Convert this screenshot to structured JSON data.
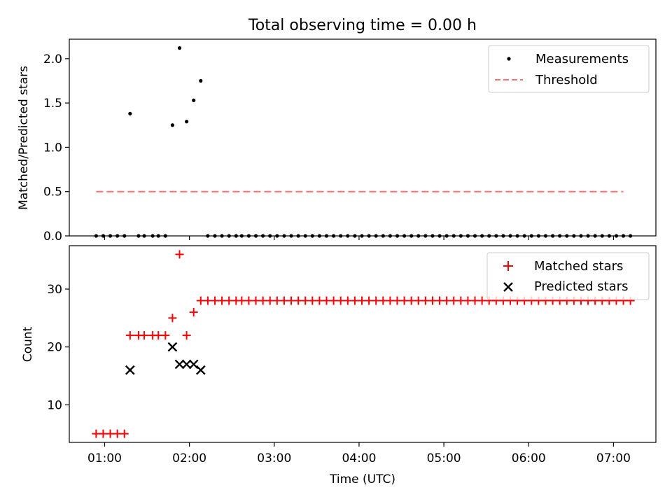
{
  "chart_data": [
    {
      "type": "scatter",
      "title": "Total observing time = 0.00 h",
      "xlabel": "",
      "ylabel": "Matched/Predicted stars",
      "xlim": [
        "00:35",
        "07:30"
      ],
      "ylim": [
        0,
        2.22
      ],
      "yticks": [
        0.0,
        0.5,
        1.0,
        1.5,
        2.0
      ],
      "ytick_labels": [
        "0.0",
        "0.5",
        "1.0",
        "1.5",
        "2.0"
      ],
      "grid": false,
      "legend": "top-right",
      "series": [
        {
          "name": "Measurements",
          "marker": "dot",
          "color": "#000000",
          "x": [
            "00:54",
            "00:59",
            "01:04",
            "01:09",
            "01:14",
            "01:18",
            "01:24",
            "01:28",
            "01:34",
            "01:38",
            "01:43",
            "01:48",
            "01:53",
            "01:58",
            "02:03",
            "02:08",
            "02:13",
            "02:18",
            "02:23",
            "02:28",
            "02:33",
            "02:37",
            "02:42",
            "02:47",
            "02:52",
            "02:57",
            "03:02",
            "03:07",
            "03:12",
            "03:17",
            "03:22",
            "03:27",
            "03:32",
            "03:37",
            "03:42",
            "03:47",
            "03:52",
            "03:57",
            "04:02",
            "04:07",
            "04:12",
            "04:17",
            "04:22",
            "04:27",
            "04:32",
            "04:37",
            "04:42",
            "04:47",
            "04:52",
            "04:57",
            "05:02",
            "05:07",
            "05:12",
            "05:17",
            "05:22",
            "05:27",
            "05:32",
            "05:37",
            "05:42",
            "05:47",
            "05:52",
            "05:57",
            "06:02",
            "06:07",
            "06:12",
            "06:17",
            "06:22",
            "06:27",
            "06:32",
            "06:37",
            "06:42",
            "06:47",
            "06:52",
            "06:57",
            "07:02",
            "07:07",
            "07:12"
          ],
          "y": [
            0,
            0,
            0,
            0,
            0,
            1.38,
            0,
            0,
            0,
            0,
            0,
            1.25,
            2.12,
            1.29,
            1.53,
            1.75,
            0,
            0,
            0,
            0,
            0,
            0,
            0,
            0,
            0,
            0,
            0,
            0,
            0,
            0,
            0,
            0,
            0,
            0,
            0,
            0,
            0,
            0,
            0,
            0,
            0,
            0,
            0,
            0,
            0,
            0,
            0,
            0,
            0,
            0,
            0,
            0,
            0,
            0,
            0,
            0,
            0,
            0,
            0,
            0,
            0,
            0,
            0,
            0,
            0,
            0,
            0,
            0,
            0,
            0,
            0,
            0,
            0,
            0,
            0,
            0,
            0
          ]
        },
        {
          "name": "Threshold",
          "style": "dashed",
          "color": "#ff7070",
          "x": [
            "00:54",
            "07:07"
          ],
          "y": [
            0.5,
            0.5
          ]
        }
      ]
    },
    {
      "type": "scatter",
      "title": "",
      "xlabel": "Time (UTC)",
      "ylabel": "Count",
      "xlim": [
        "00:35",
        "07:30"
      ],
      "ylim": [
        3.5,
        37.5
      ],
      "yticks": [
        10,
        20,
        30
      ],
      "ytick_labels": [
        "10",
        "20",
        "30"
      ],
      "xticks": [
        "01:00",
        "02:00",
        "03:00",
        "04:00",
        "05:00",
        "06:00",
        "07:00"
      ],
      "xtick_labels": [
        "01:00",
        "02:00",
        "03:00",
        "04:00",
        "05:00",
        "06:00",
        "07:00"
      ],
      "grid": false,
      "legend": "top-right",
      "series": [
        {
          "name": "Matched stars",
          "marker": "plus",
          "color": "#ff0000",
          "x": [
            "00:54",
            "00:59",
            "01:04",
            "01:09",
            "01:14",
            "01:18",
            "01:24",
            "01:28",
            "01:34",
            "01:38",
            "01:43",
            "01:48",
            "01:53",
            "01:58",
            "02:03",
            "02:08",
            "02:13",
            "02:18",
            "02:23",
            "02:28",
            "02:33",
            "02:37",
            "02:42",
            "02:47",
            "02:52",
            "02:57",
            "03:02",
            "03:07",
            "03:12",
            "03:17",
            "03:22",
            "03:27",
            "03:32",
            "03:37",
            "03:42",
            "03:47",
            "03:52",
            "03:57",
            "04:02",
            "04:07",
            "04:12",
            "04:17",
            "04:22",
            "04:27",
            "04:32",
            "04:37",
            "04:42",
            "04:47",
            "04:52",
            "04:57",
            "05:02",
            "05:07",
            "05:12",
            "05:17",
            "05:22",
            "05:27",
            "05:32",
            "05:37",
            "05:42",
            "05:47",
            "05:52",
            "05:57",
            "06:02",
            "06:07",
            "06:12",
            "06:17",
            "06:22",
            "06:27",
            "06:32",
            "06:37",
            "06:42",
            "06:47",
            "06:52",
            "06:57",
            "07:02",
            "07:07",
            "07:12"
          ],
          "y": [
            5,
            5,
            5,
            5,
            5,
            22,
            22,
            22,
            22,
            22,
            22,
            25,
            36,
            22,
            26,
            28,
            28,
            28,
            28,
            28,
            28,
            28,
            28,
            28,
            28,
            28,
            28,
            28,
            28,
            28,
            28,
            28,
            28,
            28,
            28,
            28,
            28,
            28,
            28,
            28,
            28,
            28,
            28,
            28,
            28,
            28,
            28,
            28,
            28,
            28,
            28,
            28,
            28,
            28,
            28,
            28,
            28,
            28,
            28,
            28,
            28,
            28,
            28,
            28,
            28,
            28,
            28,
            28,
            28,
            28,
            28,
            28,
            28,
            28,
            28,
            28,
            28
          ]
        },
        {
          "name": "Predicted stars",
          "marker": "x",
          "color": "#000000",
          "x": [
            "01:18",
            "01:48",
            "01:53",
            "01:58",
            "02:03",
            "02:08"
          ],
          "y": [
            16,
            20,
            17,
            17,
            17,
            16
          ]
        }
      ]
    }
  ]
}
